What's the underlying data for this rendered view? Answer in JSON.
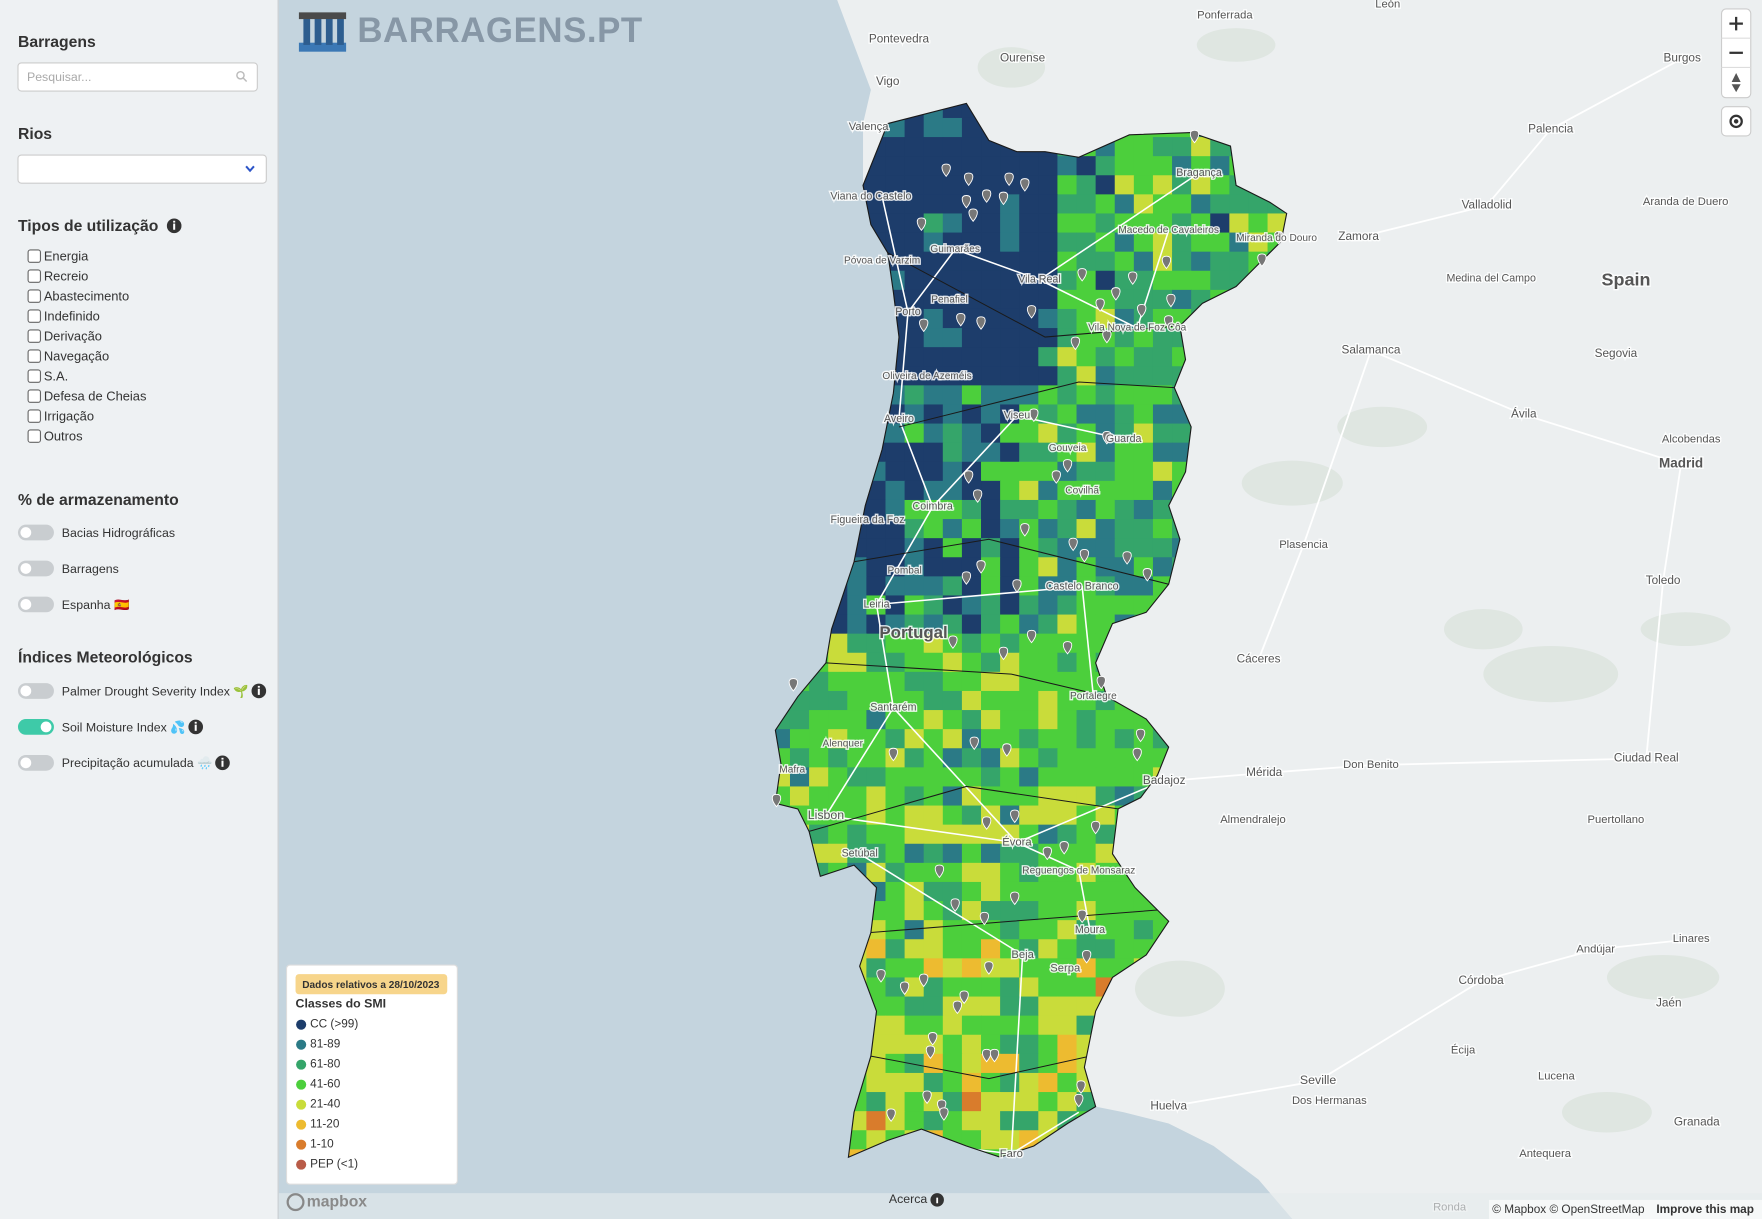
{
  "header": {
    "logo_text": "BARRAGENS.PT"
  },
  "sidebar": {
    "dams": {
      "title": "Barragens",
      "search_placeholder": "Pesquisar..."
    },
    "rivers": {
      "title": "Rios"
    },
    "usage": {
      "title": "Tipos de utilização",
      "options": [
        "Energia",
        "Recreio",
        "Abastecimento",
        "Indefinido",
        "Derivação",
        "Navegação",
        "S.A.",
        "Defesa de Cheias",
        "Irrigação",
        "Outros"
      ]
    },
    "storage": {
      "title": "% de armazenamento",
      "toggles": [
        {
          "label": "Bacias Hidrográficas",
          "on": false
        },
        {
          "label": "Barragens",
          "on": false
        },
        {
          "label": "Espanha 🇪🇸",
          "on": false
        }
      ]
    },
    "meteo": {
      "title": "Índices Meteorológicos",
      "toggles": [
        {
          "label": "Palmer Drought Severity Index 🌱",
          "on": false,
          "info": true
        },
        {
          "label": "Soil Moisture Index 💦",
          "on": true,
          "info": true
        },
        {
          "label": "Precipitação acumulada 🌧️",
          "on": false,
          "info": true
        }
      ]
    }
  },
  "legend": {
    "date_note": "Dados relativos a 28/10/2023",
    "title": "Classes do SMI",
    "classes": [
      {
        "label": "CC (>99)",
        "color": "#1d3d6b"
      },
      {
        "label": "81-89",
        "color": "#2b7a86"
      },
      {
        "label": "61-80",
        "color": "#35a56a"
      },
      {
        "label": "41-60",
        "color": "#4ccf3c"
      },
      {
        "label": "21-40",
        "color": "#c9dc3a"
      },
      {
        "label": "11-20",
        "color": "#edbb30"
      },
      {
        "label": "1-10",
        "color": "#d97c2c"
      },
      {
        "label": "PEP (<1)",
        "color": "#b95c48"
      }
    ]
  },
  "map": {
    "labels": [
      "Portugal",
      "Spain",
      "Madrid",
      "Alcobendas",
      "Segovia",
      "Ávila",
      "Salamanca",
      "Zamora",
      "Valladolid",
      "Palencia",
      "Burgos",
      "León",
      "Ponferrada",
      "Ourense",
      "Pontevedra",
      "Vigo",
      "Valença",
      "Aranda de Duero",
      "Medina del Campo",
      "Plasencia",
      "Toledo",
      "Cáceres",
      "Mérida",
      "Don Benito",
      "Ciudad Real",
      "Almendralejo",
      "Puertollano",
      "Badajoz",
      "Linares",
      "Andújar",
      "Córdoba",
      "Jaén",
      "Écija",
      "Seville",
      "Dos Hermanas",
      "Lucena",
      "Huelva",
      "Granada",
      "Antequera",
      "Ronda",
      "Viana do Castelo",
      "Bragança",
      "Macedo de Cavaleiros",
      "Miranda do Douro",
      "Vila Real",
      "Guimarães",
      "Póvoa de Varzim",
      "Penafiel",
      "Porto",
      "Vila Nova de Foz Côa",
      "Oliveira de Azeméis",
      "Viseu",
      "Aveiro",
      "Guarda",
      "Gouveia",
      "Covilhã",
      "Coimbra",
      "Figueira da Foz",
      "Pombal",
      "Castelo Branco",
      "Leiria",
      "Portalegre",
      "Santarém",
      "Alenquer",
      "Mafra",
      "Lisbon",
      "Setúbal",
      "Évora",
      "Reguengos de Monsaraz",
      "Moura",
      "Serpa",
      "Beja",
      "Faro"
    ],
    "about": "Acerca",
    "brand": "mapbox",
    "attribution": "© Mapbox © OpenStreetMap",
    "improve": "Improve this map"
  }
}
